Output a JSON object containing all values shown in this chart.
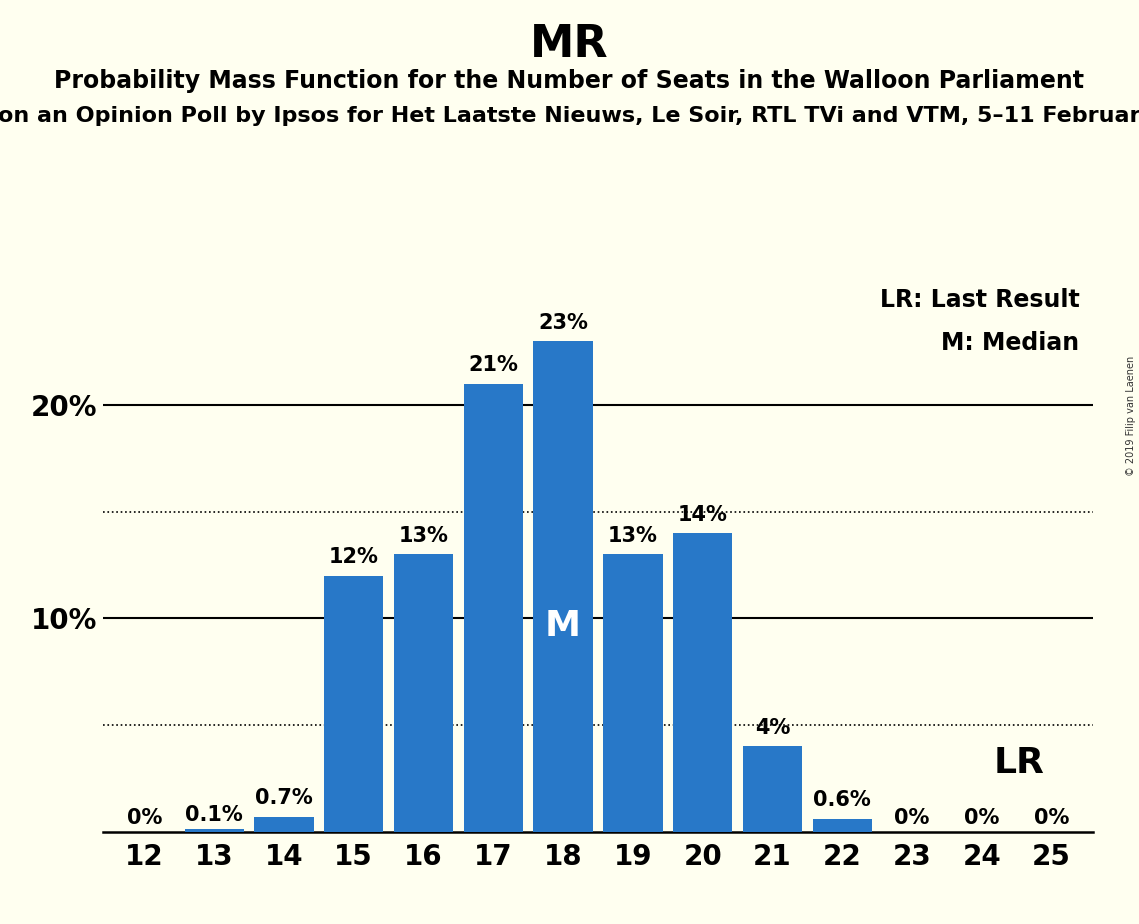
{
  "title": "MR",
  "subtitle1": "Probability Mass Function for the Number of Seats in the Walloon Parliament",
  "subtitle2": "on an Opinion Poll by Ipsos for Het Laatste Nieuws, Le Soir, RTL TVi and VTM, 5–11 Februar",
  "watermark": "© 2019 Filip van Laenen",
  "seats": [
    12,
    13,
    14,
    15,
    16,
    17,
    18,
    19,
    20,
    21,
    22,
    23,
    24,
    25
  ],
  "probabilities": [
    0.0,
    0.1,
    0.7,
    12.0,
    13.0,
    21.0,
    23.0,
    13.0,
    14.0,
    4.0,
    0.6,
    0.0,
    0.0,
    0.0
  ],
  "labels": [
    "0%",
    "0.1%",
    "0.7%",
    "12%",
    "13%",
    "21%",
    "23%",
    "13%",
    "14%",
    "4%",
    "0.6%",
    "0%",
    "0%",
    "0%"
  ],
  "bar_color": "#2878C8",
  "background_color": "#FFFFF0",
  "median_seat": 18,
  "median_label": "M",
  "lr_seat": 25,
  "lr_label": "LR",
  "legend_lr": "LR: Last Result",
  "legend_m": "M: Median",
  "solid_yticks": [
    10,
    20
  ],
  "dotted_yticks": [
    5,
    15
  ],
  "ylim": [
    0,
    26
  ],
  "title_fontsize": 32,
  "subtitle1_fontsize": 17,
  "subtitle2_fontsize": 16,
  "axis_fontsize": 20,
  "bar_label_fontsize": 15,
  "legend_fontsize": 17,
  "median_label_fontsize": 26,
  "lr_label_fontsize": 26
}
